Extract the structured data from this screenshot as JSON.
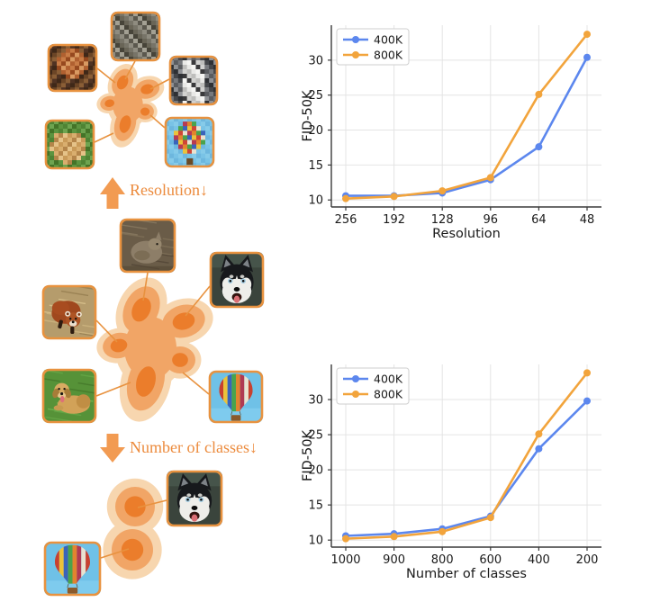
{
  "palette": {
    "blue": "#5C87EE",
    "orange": "#F2A43C",
    "grid": "#E4E4E4",
    "spine": "#3A3A3A",
    "text": "#1A1A1A",
    "blob_light": "#F7D6AF",
    "blob_mid": "#F1A566",
    "blob_core": "#EB7D2B",
    "connector": "#E8923F",
    "tile_border": "#E8923F",
    "arrow": "#F29B52",
    "label_text": "#EC8B3D",
    "legend_border": "#CFCFCF"
  },
  "diagram": {
    "resolution_label": "Resolution↓",
    "classes_label": "Number of classes↓",
    "top_cluster_images": [
      "rock-pixelated",
      "red-panda-pixelated",
      "husky-pixelated",
      "golden-retriever-pixelated",
      "hot-air-balloon-pixelated"
    ],
    "middle_cluster_images": [
      "rabbit",
      "husky",
      "red-panda",
      "golden-retriever",
      "hot-air-balloon"
    ],
    "bottom_cluster_images": [
      "husky",
      "hot-air-balloon"
    ],
    "icons": [
      "up-arrow-icon",
      "down-arrow-icon"
    ]
  },
  "chart_data": [
    {
      "type": "line",
      "title": "",
      "xlabel": "Resolution",
      "ylabel": "FID-50K",
      "categories": [
        "256",
        "192",
        "128",
        "96",
        "64",
        "48"
      ],
      "yticks": [
        10,
        15,
        20,
        25,
        30
      ],
      "ylim": [
        9.0,
        35.0
      ],
      "grid": true,
      "legend_position": "upper left",
      "series": [
        {
          "name": "400K",
          "color": "#5C87EE",
          "values": [
            10.6,
            10.6,
            11.0,
            12.9,
            17.6,
            30.4
          ]
        },
        {
          "name": "800K",
          "color": "#F2A43C",
          "values": [
            10.2,
            10.5,
            11.3,
            13.2,
            25.1,
            33.7
          ]
        }
      ]
    },
    {
      "type": "line",
      "title": "",
      "xlabel": "Number of classes",
      "ylabel": "FID-50K",
      "categories": [
        "1000",
        "900",
        "800",
        "600",
        "400",
        "200"
      ],
      "yticks": [
        10,
        15,
        20,
        25,
        30
      ],
      "ylim": [
        9.0,
        35.0
      ],
      "grid": true,
      "legend_position": "upper left",
      "series": [
        {
          "name": "400K",
          "color": "#5C87EE",
          "values": [
            10.6,
            10.9,
            11.6,
            13.4,
            23.0,
            29.8
          ]
        },
        {
          "name": "800K",
          "color": "#F2A43C",
          "values": [
            10.2,
            10.5,
            11.2,
            13.2,
            25.1,
            33.8
          ]
        }
      ]
    }
  ]
}
